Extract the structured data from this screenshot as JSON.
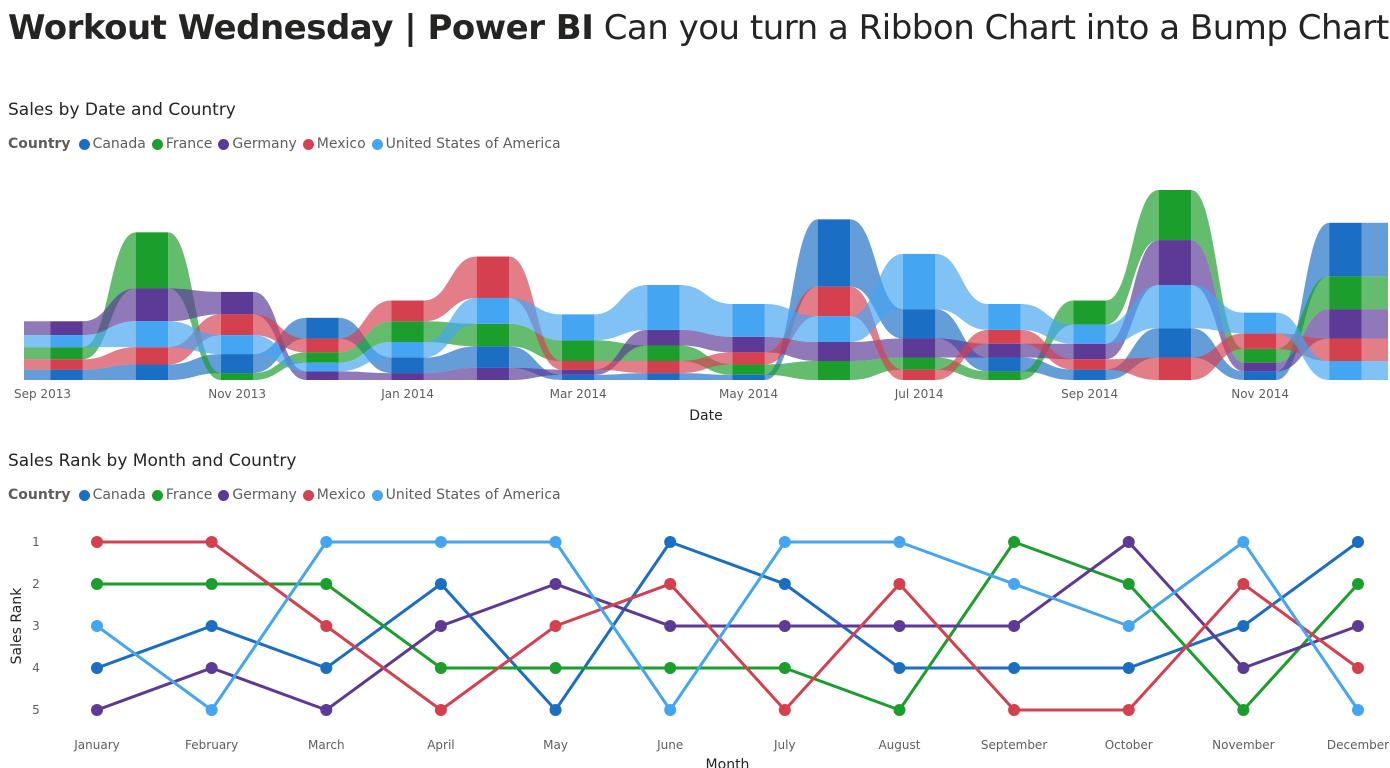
{
  "page": {
    "title_bold": "Workout Wednesday | Power BI",
    "title_light": "Can you turn a Ribbon Chart into a Bump Chart?"
  },
  "colors": {
    "Canada": "#1a6ec4",
    "France": "#1b9e2b",
    "Germany": "#5c3a96",
    "Mexico": "#d5404f",
    "United States of America": "#44a5f2"
  },
  "ribbon": {
    "title": "Sales by Date and Country",
    "legend_heading": "Country",
    "legend": [
      "Canada",
      "France",
      "Germany",
      "Mexico",
      "United States of America"
    ]
  },
  "bump": {
    "title": "Sales Rank by Month and Country",
    "legend_heading": "Country",
    "legend": [
      "Canada",
      "France",
      "Germany",
      "Mexico",
      "United States of America"
    ]
  },
  "chart_data": [
    {
      "type": "area",
      "subtype": "ribbon",
      "title": "Sales by Date and Country",
      "xlabel": "Date",
      "ylabel": "",
      "categories": [
        "Sep 2013",
        "Oct 2013",
        "Nov 2013",
        "Dec 2013",
        "Jan 2014",
        "Feb 2014",
        "Mar 2014",
        "Apr 2014",
        "May 2014",
        "Jun 2014",
        "Jul 2014",
        "Aug 2014",
        "Sep 2014",
        "Oct 2014",
        "Nov 2014",
        "Dec 2014"
      ],
      "x_tick_labels": [
        "Sep 2013",
        "Nov 2013",
        "Jan 2014",
        "Mar 2014",
        "May 2014",
        "Jul 2014",
        "Sep 2014",
        "Nov 2014"
      ],
      "series": [
        {
          "name": "Canada",
          "values": [
            12,
            18,
            22,
            24,
            18,
            25,
            6,
            8,
            6,
            78,
            34,
            16,
            12,
            34,
            10,
            62
          ]
        },
        {
          "name": "France",
          "values": [
            14,
            65,
            8,
            12,
            24,
            26,
            24,
            18,
            12,
            22,
            14,
            10,
            28,
            58,
            16,
            38
          ]
        },
        {
          "name": "Germany",
          "values": [
            16,
            38,
            26,
            10,
            8,
            14,
            6,
            18,
            18,
            22,
            22,
            16,
            18,
            52,
            10,
            34
          ]
        },
        {
          "name": "Mexico",
          "values": [
            12,
            20,
            24,
            16,
            24,
            48,
            10,
            14,
            14,
            34,
            12,
            16,
            12,
            26,
            18,
            26
          ]
        },
        {
          "name": "United States of America",
          "values": [
            14,
            30,
            22,
            10,
            18,
            30,
            30,
            52,
            38,
            30,
            64,
            30,
            22,
            50,
            24,
            22
          ]
        }
      ]
    },
    {
      "type": "line",
      "subtype": "bump",
      "title": "Sales Rank by Month and Country",
      "xlabel": "Month",
      "ylabel": "Sales Rank",
      "categories": [
        "January",
        "February",
        "March",
        "April",
        "May",
        "June",
        "July",
        "August",
        "September",
        "October",
        "November",
        "December"
      ],
      "y_tick_labels": [
        "1",
        "2",
        "3",
        "4",
        "5"
      ],
      "ylim": [
        1,
        5
      ],
      "y_inverted": true,
      "series": [
        {
          "name": "Canada",
          "values": [
            4,
            3,
            4,
            2,
            5,
            1,
            2,
            4,
            4,
            4,
            3,
            1
          ]
        },
        {
          "name": "France",
          "values": [
            2,
            2,
            2,
            4,
            4,
            4,
            4,
            5,
            1,
            2,
            5,
            2
          ]
        },
        {
          "name": "Germany",
          "values": [
            5,
            4,
            5,
            3,
            2,
            3,
            3,
            3,
            3,
            1,
            4,
            3
          ]
        },
        {
          "name": "Mexico",
          "values": [
            1,
            1,
            3,
            5,
            3,
            2,
            5,
            2,
            5,
            5,
            2,
            4
          ]
        },
        {
          "name": "United States of America",
          "values": [
            3,
            5,
            1,
            1,
            1,
            5,
            1,
            1,
            2,
            3,
            1,
            5
          ]
        }
      ]
    }
  ]
}
